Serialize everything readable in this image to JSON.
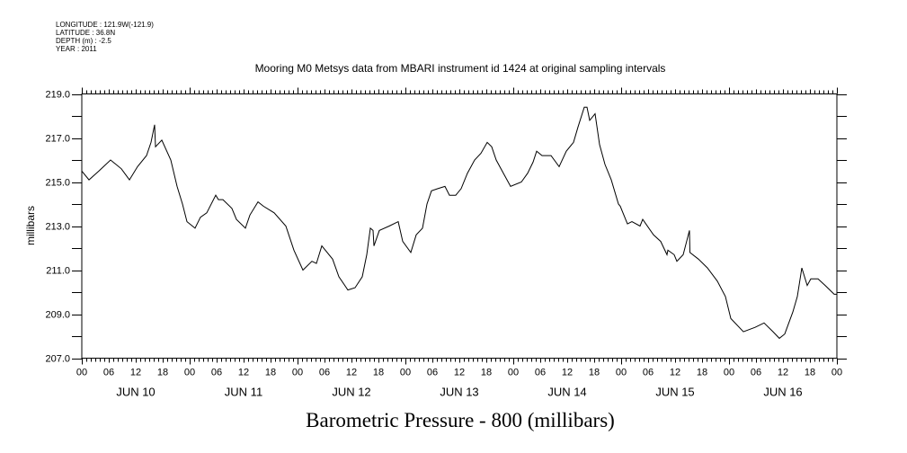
{
  "header": {
    "longitude": "LONGITUDE : 121.9W(-121.9)",
    "latitude": "LATITUDE : 36.8N",
    "depth": "DEPTH (m) : -2.5",
    "year": "YEAR : 2011"
  },
  "chart_data": {
    "type": "line",
    "title": "Mooring M0 Metsys data from MBARI instrument id 1424 at original sampling intervals",
    "xlabel": "Barometric Pressure - 800 (millibars)",
    "ylabel": "millibars",
    "x_units": "hours since JUN 10 00:00",
    "xlim": [
      0,
      168
    ],
    "ylim": [
      207,
      219
    ],
    "yticks": [
      "207.0",
      "209.0",
      "211.0",
      "213.0",
      "215.0",
      "217.0",
      "219.0"
    ],
    "xtick_hours": [
      "00",
      "06",
      "12",
      "18"
    ],
    "xtick_final": "00",
    "day_labels": [
      "JUN 10",
      "JUN 11",
      "JUN 12",
      "JUN 13",
      "JUN 14",
      "JUN 15",
      "JUN 16"
    ],
    "grid": false,
    "color": "#000000",
    "series": [
      {
        "name": "Barometric Pressure - 800",
        "points": [
          [
            0,
            215.5
          ],
          [
            1.6,
            215.1
          ],
          [
            3.8,
            215.5
          ],
          [
            6.4,
            216.0
          ],
          [
            8.8,
            215.6
          ],
          [
            10.6,
            215.1
          ],
          [
            12.4,
            215.7
          ],
          [
            14.4,
            216.2
          ],
          [
            15.4,
            216.8
          ],
          [
            16.2,
            217.6
          ],
          [
            16.4,
            216.6
          ],
          [
            17.8,
            216.9
          ],
          [
            19.8,
            216.0
          ],
          [
            21.2,
            214.8
          ],
          [
            22.4,
            214.0
          ],
          [
            23.4,
            213.2
          ],
          [
            25.2,
            212.9
          ],
          [
            26.4,
            213.4
          ],
          [
            27.8,
            213.6
          ],
          [
            29.8,
            214.4
          ],
          [
            30.4,
            214.2
          ],
          [
            31.4,
            214.2
          ],
          [
            33.4,
            213.8
          ],
          [
            34.4,
            213.3
          ],
          [
            36.4,
            212.9
          ],
          [
            37.4,
            213.5
          ],
          [
            39.2,
            214.1
          ],
          [
            40.4,
            213.9
          ],
          [
            42.8,
            213.6
          ],
          [
            45.4,
            213.0
          ],
          [
            47.2,
            211.9
          ],
          [
            49.2,
            211.0
          ],
          [
            51.2,
            211.4
          ],
          [
            52.2,
            211.3
          ],
          [
            53.4,
            212.1
          ],
          [
            55.8,
            211.5
          ],
          [
            57.2,
            210.7
          ],
          [
            59.2,
            210.1
          ],
          [
            60.8,
            210.2
          ],
          [
            62.4,
            210.7
          ],
          [
            63.4,
            211.7
          ],
          [
            64.2,
            212.9
          ],
          [
            64.8,
            212.8
          ],
          [
            65.0,
            212.1
          ],
          [
            66.2,
            212.8
          ],
          [
            68.4,
            213.0
          ],
          [
            70.4,
            213.2
          ],
          [
            71.4,
            212.3
          ],
          [
            73.2,
            211.8
          ],
          [
            74.4,
            212.6
          ],
          [
            75.8,
            212.9
          ],
          [
            76.8,
            214.0
          ],
          [
            77.8,
            214.6
          ],
          [
            79.2,
            214.7
          ],
          [
            80.8,
            214.8
          ],
          [
            81.8,
            214.4
          ],
          [
            83.2,
            214.4
          ],
          [
            84.4,
            214.7
          ],
          [
            85.8,
            215.4
          ],
          [
            87.4,
            216.0
          ],
          [
            88.8,
            216.3
          ],
          [
            90.2,
            216.8
          ],
          [
            91.2,
            216.6
          ],
          [
            92.2,
            216.0
          ],
          [
            93.8,
            215.4
          ],
          [
            95.4,
            214.8
          ],
          [
            97.8,
            215.0
          ],
          [
            99.2,
            215.4
          ],
          [
            100.4,
            215.9
          ],
          [
            101.2,
            216.4
          ],
          [
            102.4,
            216.2
          ],
          [
            104.4,
            216.2
          ],
          [
            106.2,
            215.7
          ],
          [
            107.8,
            216.4
          ],
          [
            109.4,
            216.8
          ],
          [
            110.4,
            217.5
          ],
          [
            111.8,
            218.4
          ],
          [
            112.4,
            218.4
          ],
          [
            113.0,
            217.8
          ],
          [
            114.2,
            218.1
          ],
          [
            115.2,
            216.7
          ],
          [
            116.4,
            215.8
          ],
          [
            117.8,
            215.1
          ],
          [
            119.4,
            214.0
          ],
          [
            119.8,
            213.9
          ],
          [
            121.4,
            213.1
          ],
          [
            122.4,
            213.2
          ],
          [
            124.2,
            213.0
          ],
          [
            124.8,
            213.3
          ],
          [
            127.2,
            212.6
          ],
          [
            128.8,
            212.3
          ],
          [
            130.2,
            211.7
          ],
          [
            130.4,
            211.9
          ],
          [
            131.8,
            211.7
          ],
          [
            132.4,
            211.4
          ],
          [
            133.8,
            211.7
          ],
          [
            135.2,
            212.8
          ],
          [
            135.3,
            211.8
          ],
          [
            137.2,
            211.5
          ],
          [
            139.2,
            211.1
          ],
          [
            141.4,
            210.5
          ],
          [
            143.2,
            209.8
          ],
          [
            144.4,
            208.8
          ],
          [
            147.2,
            208.2
          ],
          [
            149.8,
            208.4
          ],
          [
            151.8,
            208.6
          ],
          [
            153.8,
            208.2
          ],
          [
            155.2,
            207.9
          ],
          [
            156.4,
            208.1
          ],
          [
            158.2,
            209.1
          ],
          [
            159.2,
            209.8
          ],
          [
            160.2,
            211.1
          ],
          [
            161.4,
            210.3
          ],
          [
            162.2,
            210.6
          ],
          [
            163.8,
            210.6
          ],
          [
            165.4,
            210.3
          ],
          [
            167.4,
            209.9
          ],
          [
            168,
            209.9
          ]
        ]
      }
    ]
  }
}
